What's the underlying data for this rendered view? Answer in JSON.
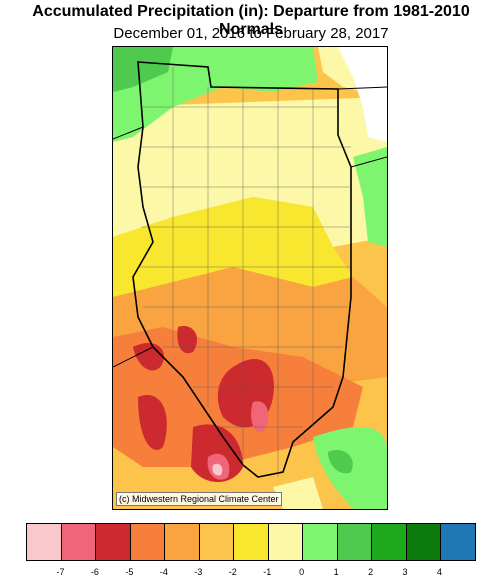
{
  "title": "Accumulated Precipitation (in): Departure from 1981-2010 Normals",
  "subtitle": "December 01, 2016 to February 28, 2017",
  "credit": "(c) Midwestern Regional Climate Center",
  "legend": {
    "colors": [
      "#f9c7cc",
      "#ee6677",
      "#cc2a2f",
      "#f67f3b",
      "#f9a441",
      "#fcc44b",
      "#f8e62f",
      "#fcf8a7",
      "#7ef56e",
      "#4fc94e",
      "#1ea81e",
      "#0d7a0d",
      "#1f78b4"
    ],
    "tick_labels": [
      "-7",
      "-6",
      "-5",
      "-4",
      "-3",
      "-2",
      "-1",
      "0",
      "1",
      "2",
      "3",
      "4"
    ]
  }
}
